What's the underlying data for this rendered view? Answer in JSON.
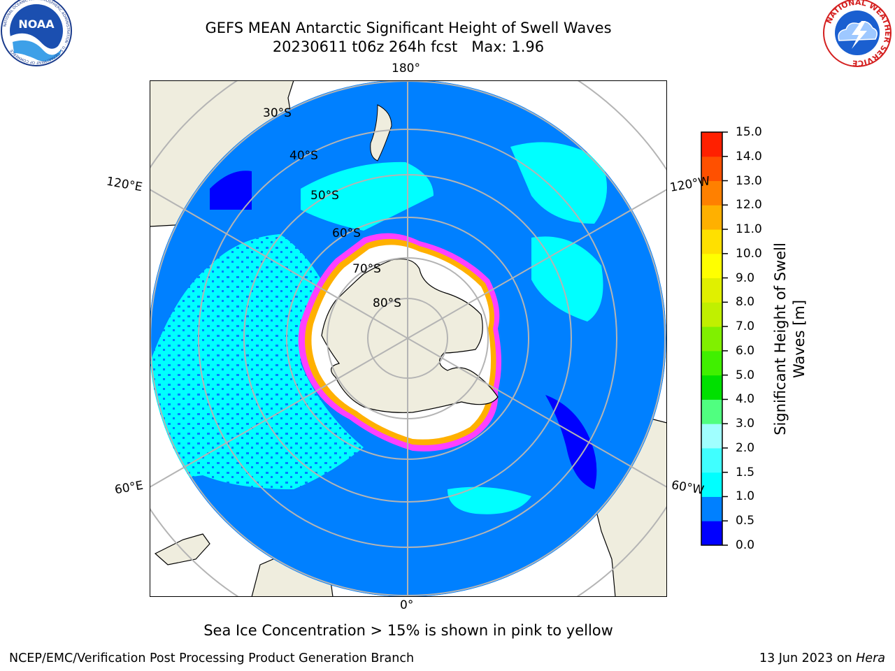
{
  "header": {
    "title_line1": "GEFS MEAN Antarctic Significant Height of Swell Waves",
    "title_line2": "20230611 t06z 264h fcst   Max: 1.96",
    "left_logo": "noara-logo",
    "left_logo_text": "NOAA",
    "left_logo_ring_text": "NATIONAL OCEANIC AND ATMOSPHERIC ADMINISTRATION · U.S. DEPARTMENT OF COMMERCE",
    "right_logo": "national-weather-service-logo",
    "right_logo_ring_text": "NATIONAL WEATHER SERVICE"
  },
  "map": {
    "projection": "south-polar-stereographic",
    "longitude_labels": {
      "top": "180°",
      "bottom": "0°",
      "left_upper": "120°E",
      "left_lower": "60°E",
      "right_upper": "120°W",
      "right_lower": "60°W"
    },
    "latitude_labels": [
      "30°S",
      "40°S",
      "50°S",
      "60°S",
      "70°S",
      "80°S"
    ],
    "colors": {
      "land": "#efedde",
      "ocean_low": "#0080ff",
      "ocean_mid": "#00ffff",
      "ocean_vlow": "#0000ff",
      "sea_ice": "#ffffff",
      "ice_edge_pink": "#ff40ff",
      "ice_edge_orange": "#ffb000",
      "grid": "#b4b4b4"
    }
  },
  "colorbar": {
    "title_line1": "Significant Height of Swell",
    "title_line2": "Waves [m]",
    "ticks": [
      "0.0",
      "0.5",
      "1.0",
      "1.5",
      "2.0",
      "3.0",
      "4.0",
      "5.0",
      "6.0",
      "7.0",
      "8.0",
      "9.0",
      "10.0",
      "11.0",
      "12.0",
      "13.0",
      "14.0",
      "15.0"
    ],
    "colors": [
      "#0000ff",
      "#0080ff",
      "#00ffff",
      "#40ffff",
      "#a0ffff",
      "#50ff80",
      "#00e000",
      "#40f000",
      "#80f000",
      "#c0f000",
      "#e0f000",
      "#ffff00",
      "#ffe000",
      "#ffb000",
      "#ff8000",
      "#ff5000",
      "#ff2000",
      "#ff0000"
    ]
  },
  "footer": {
    "note": "Sea Ice Concentration > 15% is shown in pink to yellow",
    "left": "NCEP/EMC/Verification Post Processing Product Generation Branch",
    "right_prefix": "13 Jun 2023 on ",
    "right_host": "Hera"
  }
}
